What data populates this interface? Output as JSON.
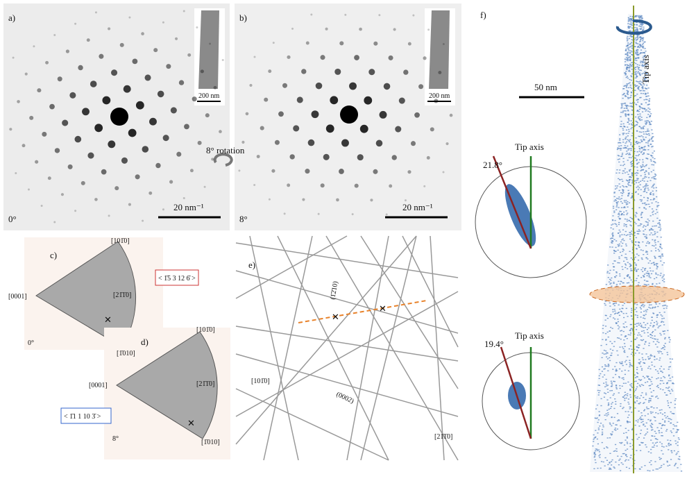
{
  "panel_a": {
    "label": "a)",
    "angle": "0°",
    "scale_bar": "20 nm⁻¹",
    "inset_scale": "200 nm"
  },
  "panel_b": {
    "label": "b)",
    "angle": "8°",
    "scale_bar": "20 nm⁻¹",
    "inset_scale": "200 nm"
  },
  "rotation_label": "8° rotation",
  "panel_c": {
    "label": "c)",
    "pole_top": "[101̄0]",
    "pole_left": "[0001]",
    "pole_mid": "[21̄1̄0]",
    "pole_bottom": "[1̄010]",
    "angle": "0°",
    "direction": "< 1̄5 3 12 6̄ >"
  },
  "panel_d": {
    "label": "d)",
    "pole_top": "[101̄0]",
    "pole_left": "[0001]",
    "pole_mid": "[21̄1̄0]",
    "pole_bottom": "[1̄010]",
    "angle": "8°",
    "direction": "< 1̄1 1 10 3̄ >"
  },
  "panel_e": {
    "label": "e)",
    "plane_1": "(1̄2̄10)",
    "direction_1": "[101̄0]",
    "plane_2": "(0002)",
    "direction_2": "[21̄1̄0]"
  },
  "panel_f": {
    "label": "f)",
    "scale_bar": "50 nm",
    "tip_axis": "Tip axis",
    "upper_angle": "21.8°",
    "upper_axis": "Tip axis",
    "lower_angle": "19.4°",
    "lower_axis": "Tip axis"
  }
}
